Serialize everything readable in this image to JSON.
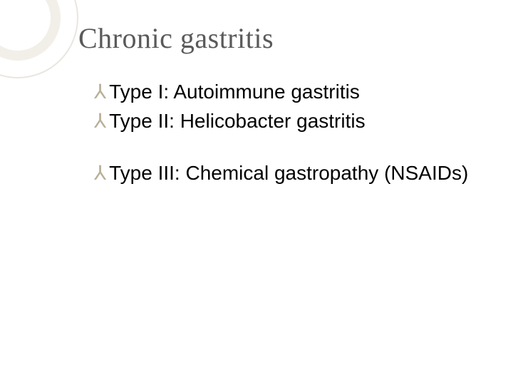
{
  "slide": {
    "title": "Chronic gastritis",
    "title_color": "#5a5a5a",
    "title_fontsize": 40,
    "bullet_groups": [
      {
        "items": [
          {
            "text": "Type I: Autoimmune gastritis"
          },
          {
            "text": "Type II: Helicobacter gastritis"
          }
        ]
      },
      {
        "items": [
          {
            "text": "Type III: Chemical gastropathy (NSAIDs)"
          }
        ]
      }
    ],
    "bullet_glyph": "⅄",
    "bullet_glyph_color": "#b9b098",
    "bullet_text_color": "#000000",
    "bullet_fontsize": 28,
    "background_color": "#ffffff",
    "deco_ring_outer_color": "#e9e6e0",
    "deco_ring_inner_color": "#f2efe9"
  }
}
